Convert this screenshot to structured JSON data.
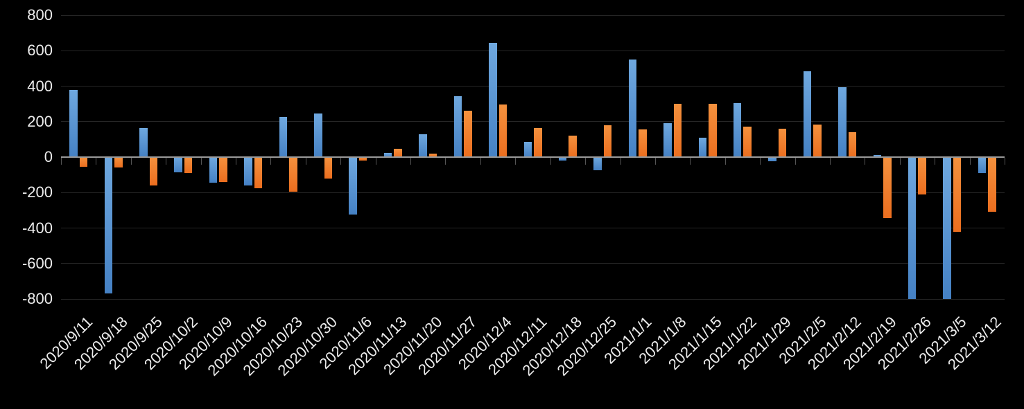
{
  "chart_data": {
    "type": "bar",
    "title": "",
    "xlabel": "",
    "ylabel": "",
    "categories": [
      "2020/9/11",
      "2020/9/18",
      "2020/9/25",
      "2020/10/2",
      "2020/10/9",
      "2020/10/16",
      "2020/10/23",
      "2020/10/30",
      "2020/11/6",
      "2020/11/13",
      "2020/11/20",
      "2020/11/27",
      "2020/12/4",
      "2020/12/11",
      "2020/12/18",
      "2020/12/25",
      "2021/1/1",
      "2021/1/8",
      "2021/1/15",
      "2021/1/22",
      "2021/1/29",
      "2021/2/5",
      "2021/2/12",
      "2021/2/19",
      "2021/2/26",
      "2021/3/5",
      "2021/3/12"
    ],
    "series": [
      {
        "name": "blue",
        "color": "#5B9BD5",
        "gradient_top": "#6FA8DF",
        "gradient_bottom": "#4581C4",
        "values": [
          380,
          -770,
          165,
          -85,
          -145,
          -160,
          225,
          245,
          -325,
          25,
          130,
          345,
          645,
          85,
          -20,
          -75,
          550,
          190,
          110,
          305,
          -25,
          485,
          395,
          10,
          -800,
          -800,
          -90
        ]
      },
      {
        "name": "orange",
        "color": "#ED7D31",
        "gradient_top": "#F4913E",
        "gradient_bottom": "#EB6E1F",
        "values": [
          -55,
          -60,
          -160,
          -90,
          -140,
          -175,
          -195,
          -120,
          -20,
          45,
          20,
          260,
          295,
          165,
          120,
          180,
          155,
          300,
          300,
          170,
          160,
          185,
          140,
          -345,
          -210,
          -420,
          -310
        ]
      }
    ],
    "y_axis": {
      "ticks": [
        800,
        600,
        400,
        200,
        0,
        -200,
        -400,
        -600,
        -800
      ],
      "min": -800,
      "max": 800
    },
    "layout_hints": {
      "background": "#000000",
      "gridline_color": "#262626",
      "zero_axis_color": "#9a9a9a",
      "tick_color": "#555555",
      "label_color": "#ececec",
      "grid": true,
      "legend": "none",
      "x_label_rotation_deg": -45
    }
  }
}
